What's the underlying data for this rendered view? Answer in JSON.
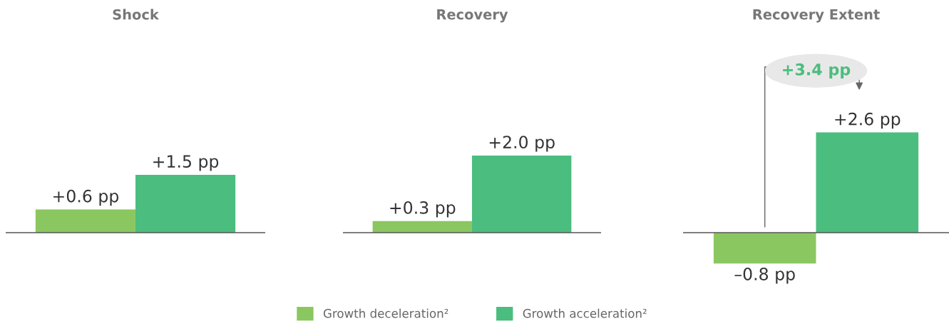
{
  "chart_data": [
    {
      "type": "bar",
      "title": "Shock",
      "categories": [
        null
      ],
      "series": [
        {
          "color": "#8bc760",
          "values": [
            0.6
          ],
          "value_labels": [
            "+0.6 pp"
          ]
        },
        {
          "color": "#4bbd7e",
          "values": [
            1.5
          ],
          "value_labels": [
            "+1.5 pp"
          ]
        }
      ]
    },
    {
      "type": "bar",
      "title": "Recovery",
      "categories": [
        null
      ],
      "legend": "bottom",
      "series": [
        {
          "name": "Growth deceleration²",
          "color": "#8bc760",
          "values": [
            0.3
          ],
          "value_labels": [
            "+0.3 pp"
          ]
        },
        {
          "name": "Growth acceleration²",
          "color": "#4bbd7e",
          "values": [
            2.0
          ],
          "value_labels": [
            "+2.0 pp"
          ]
        }
      ]
    },
    {
      "type": "bar",
      "title": "Recovery Extent",
      "categories": [
        null
      ],
      "annotations": [
        "+3.4 pp"
      ],
      "series": [
        {
          "color": "#8bc760",
          "values": [
            -0.8
          ],
          "value_labels": [
            "–0.8 pp"
          ]
        },
        {
          "color": "#4bbd7e",
          "values": [
            2.6
          ],
          "value_labels": [
            "+2.6 pp"
          ]
        }
      ]
    }
  ]
}
